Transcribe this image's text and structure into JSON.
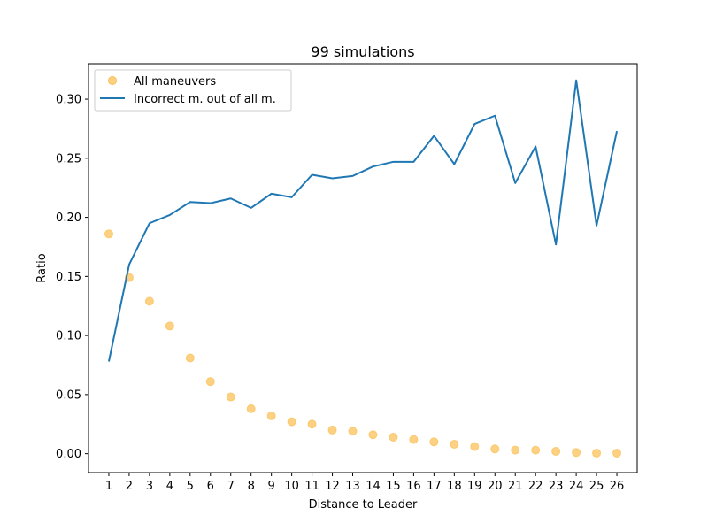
{
  "chart_data": {
    "type": "line",
    "title": "99 simulations",
    "xlabel": "Distance to Leader",
    "ylabel": "Ratio",
    "x": [
      1,
      2,
      3,
      4,
      5,
      6,
      7,
      8,
      9,
      10,
      11,
      12,
      13,
      14,
      15,
      16,
      17,
      18,
      19,
      20,
      21,
      22,
      23,
      24,
      25,
      26
    ],
    "xlim": [
      0,
      27
    ],
    "ylim": [
      -0.016,
      0.33
    ],
    "y_ticks": [
      0.0,
      0.05,
      0.1,
      0.15,
      0.2,
      0.25,
      0.3
    ],
    "y_tick_labels": [
      "0.00",
      "0.05",
      "0.10",
      "0.15",
      "0.20",
      "0.25",
      "0.30"
    ],
    "x_tick_labels": [
      "1",
      "2",
      "3",
      "4",
      "5",
      "6",
      "7",
      "8",
      "9",
      "10",
      "11",
      "12",
      "13",
      "14",
      "15",
      "16",
      "17",
      "18",
      "19",
      "20",
      "21",
      "22",
      "23",
      "24",
      "25",
      "26"
    ],
    "grid": false,
    "legend_position": "top-left",
    "series": [
      {
        "name": "All maneuvers",
        "kind": "scatter",
        "color": "#fbbd4e",
        "values": [
          0.186,
          0.149,
          0.129,
          0.108,
          0.081,
          0.061,
          0.048,
          0.038,
          0.032,
          0.027,
          0.025,
          0.02,
          0.019,
          0.016,
          0.014,
          0.012,
          0.01,
          0.008,
          0.006,
          0.004,
          0.003,
          0.003,
          0.002,
          0.001,
          0.0005,
          0.0005
        ]
      },
      {
        "name": "Incorrect m. out of all m.",
        "kind": "line",
        "color": "#1f77b4",
        "values": [
          0.078,
          0.16,
          0.195,
          0.202,
          0.213,
          0.212,
          0.216,
          0.208,
          0.22,
          0.217,
          0.236,
          0.233,
          0.235,
          0.243,
          0.247,
          0.247,
          0.269,
          0.245,
          0.279,
          0.286,
          0.229,
          0.26,
          0.177,
          0.316,
          0.193,
          0.273
        ]
      }
    ]
  }
}
